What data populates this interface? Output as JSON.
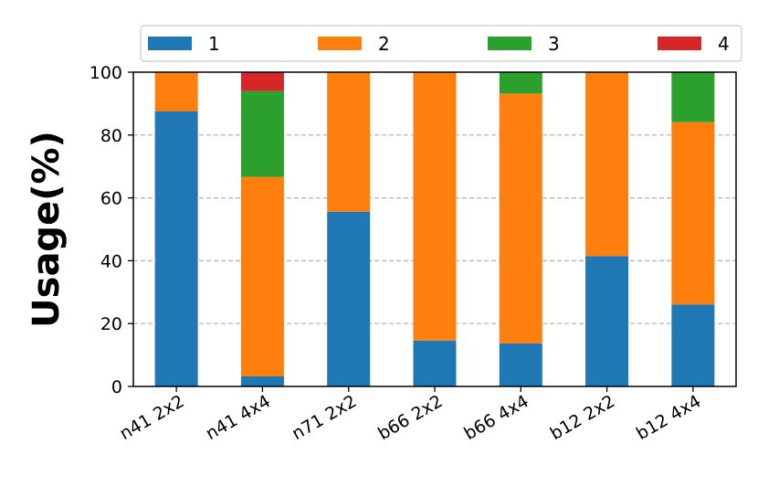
{
  "chart_data": {
    "type": "bar",
    "stacked": true,
    "title": "",
    "xlabel": "",
    "ylabel": "Usage(%)",
    "ylim": [
      0,
      100
    ],
    "yticks": [
      0,
      20,
      40,
      60,
      80,
      100
    ],
    "grid": "horizontal-dashed",
    "legend_position": "top",
    "categories": [
      "n41 2x2",
      "n41 4x4",
      "n71 2x2",
      "b66 2x2",
      "b66 4x4",
      "b12 2x2",
      "b12 4x4"
    ],
    "series": [
      {
        "name": "1",
        "color": "#1f77b4",
        "values": [
          87.5,
          3.2,
          55.6,
          14.6,
          13.7,
          41.5,
          26.1
        ]
      },
      {
        "name": "2",
        "color": "#ff7f0e",
        "values": [
          12.5,
          63.5,
          44.4,
          85.4,
          79.5,
          58.5,
          58.0
        ]
      },
      {
        "name": "3",
        "color": "#2ca02c",
        "values": [
          0,
          27.3,
          0,
          0,
          6.8,
          0,
          15.9
        ]
      },
      {
        "name": "4",
        "color": "#d62728",
        "values": [
          0,
          6.0,
          0,
          0,
          0,
          0,
          0
        ]
      }
    ]
  }
}
